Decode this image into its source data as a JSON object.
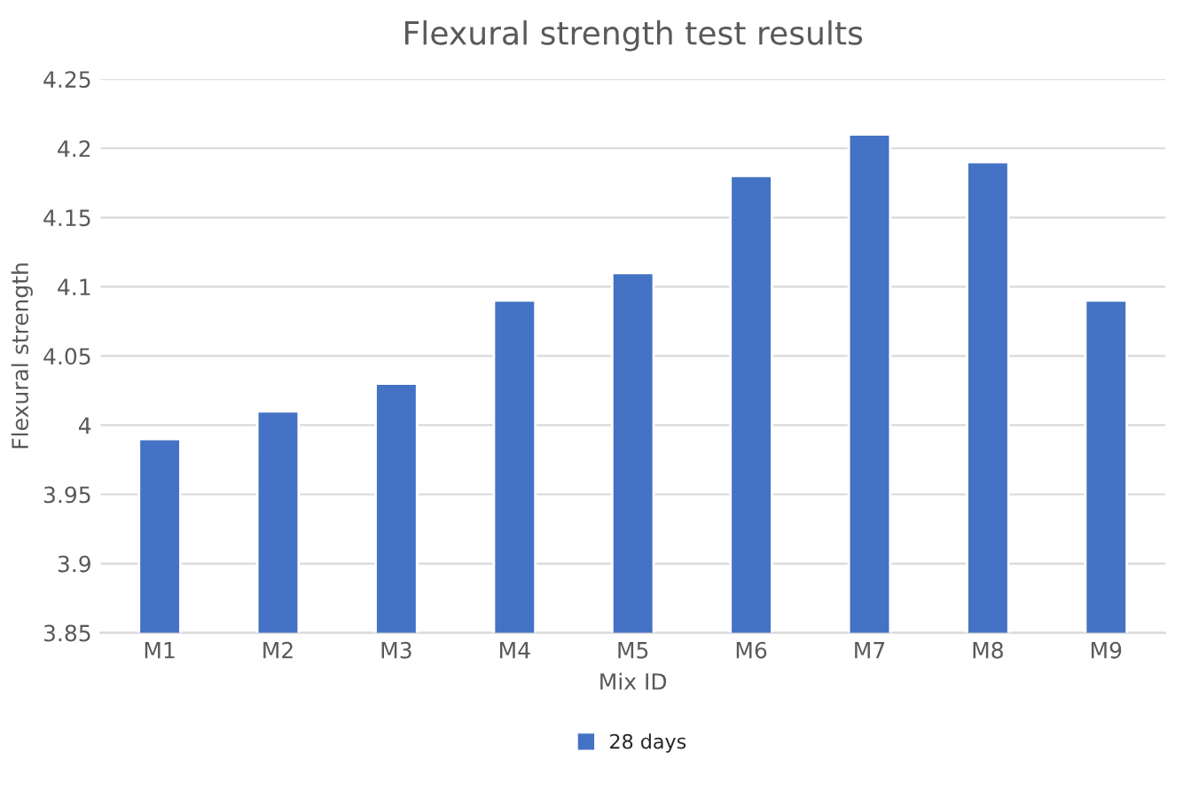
{
  "chart_data": {
    "type": "bar",
    "title": "Flexural strength test results",
    "xlabel": "Mix ID",
    "ylabel": "Flexural strength",
    "categories": [
      "M1",
      "M2",
      "M3",
      "M4",
      "M5",
      "M6",
      "M7",
      "M8",
      "M9"
    ],
    "series": [
      {
        "name": "28 days",
        "color": "#4472c4",
        "values": [
          3.99,
          4.01,
          4.03,
          4.09,
          4.11,
          4.18,
          4.21,
          4.19,
          4.09
        ]
      }
    ],
    "ylim": [
      3.85,
      4.25
    ],
    "yticks": [
      3.85,
      3.9,
      3.95,
      4,
      4.05,
      4.1,
      4.15,
      4.2,
      4.25
    ],
    "grid": "y",
    "legend": "bottom"
  }
}
